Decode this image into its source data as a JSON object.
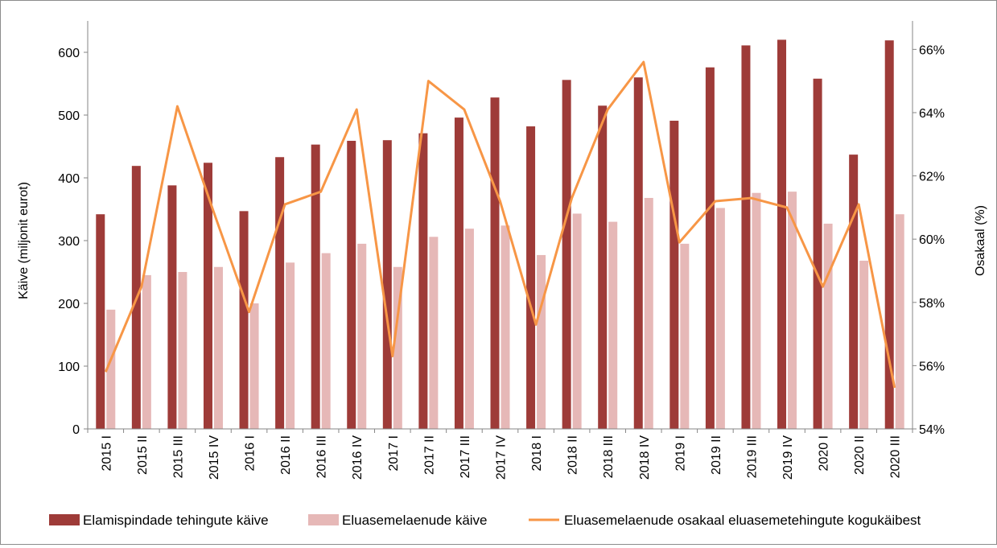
{
  "chart_data": {
    "type": "bar",
    "categories": [
      "2015 I",
      "2015 II",
      "2015 III",
      "2015 IV",
      "2016 I",
      "2016 II",
      "2016 III",
      "2016 IV",
      "2017 I",
      "2017 II",
      "2017 III",
      "2017 IV",
      "2018 I",
      "2018 II",
      "2018 III",
      "2018 IV",
      "2019 I",
      "2019 II",
      "2019 III",
      "2019 IV",
      "2020 I",
      "2020 II",
      "2020 III"
    ],
    "series": [
      {
        "name": "Elamispindade tehingute käive",
        "type": "bar",
        "axis": "left",
        "color": "#9e3b38",
        "values": [
          342,
          419,
          388,
          424,
          347,
          433,
          453,
          459,
          460,
          471,
          496,
          528,
          482,
          556,
          515,
          560,
          491,
          576,
          611,
          620,
          558,
          437,
          619
        ]
      },
      {
        "name": "Eluasemelaenude käive",
        "type": "bar",
        "axis": "left",
        "color": "#e6b8b7",
        "values": [
          190,
          245,
          250,
          258,
          200,
          265,
          280,
          295,
          258,
          306,
          319,
          324,
          277,
          343,
          330,
          368,
          295,
          352,
          376,
          378,
          327,
          268,
          342
        ]
      },
      {
        "name": "Eluasemelaenude osakaal eluasemetehingute kogukäibest",
        "type": "line",
        "axis": "right",
        "color": "#f79646",
        "values": [
          55.8,
          58.5,
          64.2,
          60.9,
          57.7,
          61.1,
          61.5,
          64.1,
          56.3,
          65.0,
          64.1,
          61.2,
          57.3,
          61.3,
          64.1,
          65.6,
          59.9,
          61.2,
          61.3,
          61.0,
          58.5,
          61.1,
          55.3
        ]
      }
    ],
    "ylabel": "Käive (miljonit eurot)",
    "y2label": "Osakaal (%)",
    "ylim": [
      0,
      650
    ],
    "yticks": [
      0,
      100,
      200,
      300,
      400,
      500,
      600
    ],
    "y2lim": [
      54,
      66.9
    ],
    "y2ticks": [
      "54%",
      "56%",
      "58%",
      "60%",
      "62%",
      "64%",
      "66%"
    ],
    "y2tick_values": [
      54,
      56,
      58,
      60,
      62,
      64,
      66
    ],
    "grid": false,
    "legend_position": "bottom"
  }
}
